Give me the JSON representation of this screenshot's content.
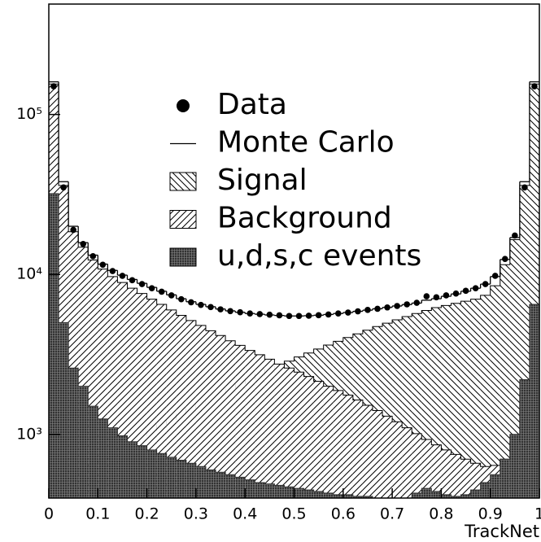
{
  "chart_data": {
    "type": "histogram",
    "xlabel": "TrackNet",
    "yscale": "log",
    "xlim": [
      0,
      1
    ],
    "ylim": [
      400,
      490000
    ],
    "xticks": [
      0,
      0.1,
      0.2,
      0.3,
      0.4,
      0.5,
      0.6,
      0.7,
      0.8,
      0.9,
      1
    ],
    "yticks": [
      {
        "value": 1000,
        "label": "10³"
      },
      {
        "value": 10000,
        "label": "10⁴"
      },
      {
        "value": 100000,
        "label": "10⁵"
      }
    ],
    "bins": [
      0,
      0.02,
      0.04,
      0.06,
      0.08,
      0.1,
      0.12,
      0.14,
      0.16,
      0.18,
      0.2,
      0.22,
      0.24,
      0.26,
      0.28,
      0.3,
      0.32,
      0.34,
      0.36,
      0.38,
      0.4,
      0.42,
      0.44,
      0.46,
      0.48,
      0.5,
      0.52,
      0.54,
      0.56,
      0.58,
      0.6,
      0.62,
      0.64,
      0.66,
      0.68,
      0.7,
      0.72,
      0.74,
      0.76,
      0.78,
      0.8,
      0.82,
      0.84,
      0.86,
      0.88,
      0.9,
      0.92,
      0.94,
      0.96,
      0.98,
      1
    ],
    "series": [
      {
        "name": "Signal",
        "style": "hatch-back",
        "color": "#000000",
        "values": [
          3000,
          600,
          560,
          600,
          650,
          700,
          760,
          830,
          900,
          980,
          1060,
          1150,
          1240,
          1340,
          1450,
          1560,
          1680,
          1800,
          1940,
          2080,
          2230,
          2380,
          2540,
          2700,
          2870,
          3050,
          3230,
          3420,
          3620,
          3820,
          4030,
          4250,
          4480,
          4720,
          4960,
          5200,
          5450,
          5700,
          5950,
          6200,
          6400,
          6600,
          6800,
          7000,
          7400,
          8500,
          11500,
          16500,
          36000,
          155000
        ]
      },
      {
        "name": "Background",
        "style": "hatch-forward",
        "color": "#000000",
        "values": [
          155000,
          36000,
          18500,
          14800,
          12300,
          10800,
          9700,
          8900,
          8200,
          7600,
          7000,
          6500,
          6000,
          5550,
          5150,
          4800,
          4450,
          4150,
          3850,
          3600,
          3350,
          3150,
          2950,
          2750,
          2600,
          2450,
          2300,
          2150,
          2000,
          1880,
          1760,
          1640,
          1520,
          1410,
          1300,
          1200,
          1100,
          1010,
          930,
          860,
          800,
          750,
          700,
          660,
          630,
          640,
          700,
          900,
          1800,
          5000
        ]
      },
      {
        "name": "u,d,s,c events",
        "style": "crosshatch",
        "color": "#333333",
        "values": [
          32000,
          5000,
          2600,
          2000,
          1500,
          1250,
          1100,
          980,
          900,
          850,
          800,
          760,
          720,
          690,
          660,
          630,
          600,
          580,
          560,
          540,
          520,
          500,
          490,
          480,
          470,
          460,
          450,
          440,
          430,
          420,
          420,
          410,
          410,
          400,
          400,
          400,
          400,
          430,
          460,
          440,
          420,
          410,
          420,
          450,
          500,
          560,
          700,
          1000,
          2200,
          6500
        ]
      },
      {
        "name": "Monte Carlo",
        "style": "line",
        "color": "#000000",
        "values": [
          160000,
          38000,
          20000,
          15800,
          13200,
          11600,
          10600,
          9900,
          9300,
          8800,
          8300,
          7850,
          7450,
          7050,
          6750,
          6500,
          6280,
          6080,
          5920,
          5800,
          5700,
          5640,
          5580,
          5540,
          5500,
          5500,
          5520,
          5560,
          5620,
          5700,
          5780,
          5880,
          5980,
          6100,
          6220,
          6350,
          6480,
          6620,
          6900,
          7050,
          7300,
          7550,
          7850,
          8200,
          8700,
          9700,
          12400,
          17000,
          38000,
          160000
        ]
      },
      {
        "name": "Data",
        "style": "points",
        "color": "#000000",
        "values": [
          150000,
          35000,
          19000,
          15500,
          13000,
          11500,
          10500,
          9800,
          9200,
          8700,
          8200,
          7800,
          7400,
          7000,
          6700,
          6450,
          6250,
          6050,
          5900,
          5800,
          5700,
          5650,
          5600,
          5550,
          5500,
          5500,
          5520,
          5560,
          5620,
          5700,
          5780,
          5880,
          6000,
          6100,
          6220,
          6350,
          6500,
          6650,
          7300,
          7200,
          7400,
          7600,
          7900,
          8200,
          8700,
          9800,
          12500,
          17500,
          35000,
          150000
        ]
      }
    ],
    "legend_order": [
      4,
      3,
      0,
      1,
      2
    ]
  }
}
